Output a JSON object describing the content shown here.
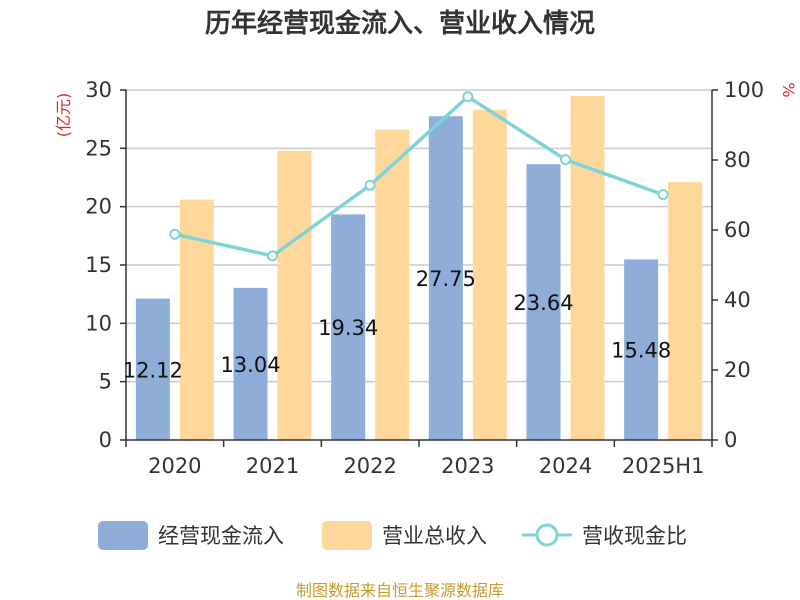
{
  "chart_data": {
    "type": "bar",
    "title": "历年经营现金流入、营业收入情况",
    "categories": [
      "2020",
      "2021",
      "2022",
      "2023",
      "2024",
      "2025H1"
    ],
    "series": [
      {
        "name": "经营现金流入",
        "type": "bar",
        "axis": "left",
        "color": "#8eadd9",
        "values": [
          12.12,
          13.04,
          19.34,
          27.75,
          23.64,
          15.48
        ],
        "data_labels": [
          "12.12",
          "13.04",
          "19.34",
          "27.75",
          "23.64",
          "15.48"
        ]
      },
      {
        "name": "营业总收入",
        "type": "bar",
        "axis": "left",
        "color": "#fdd89a",
        "values": [
          20.6,
          24.8,
          26.6,
          28.3,
          29.5,
          22.1
        ]
      },
      {
        "name": "营收现金比",
        "type": "line",
        "axis": "right",
        "color": "#7fd3d6",
        "values": [
          58.8,
          52.6,
          72.8,
          98.1,
          80.1,
          70.1
        ]
      }
    ],
    "y_left": {
      "unit": "(亿元)",
      "min": 0,
      "max": 30,
      "ticks": [
        "0",
        "5",
        "10",
        "15",
        "20",
        "25",
        "30"
      ]
    },
    "y_right": {
      "unit": "%",
      "min": 0,
      "max": 100,
      "ticks": [
        "0",
        "20",
        "40",
        "60",
        "80",
        "100"
      ]
    },
    "grid": true,
    "legend_position": "bottom"
  },
  "source": "制图数据来自恒生聚源数据库"
}
